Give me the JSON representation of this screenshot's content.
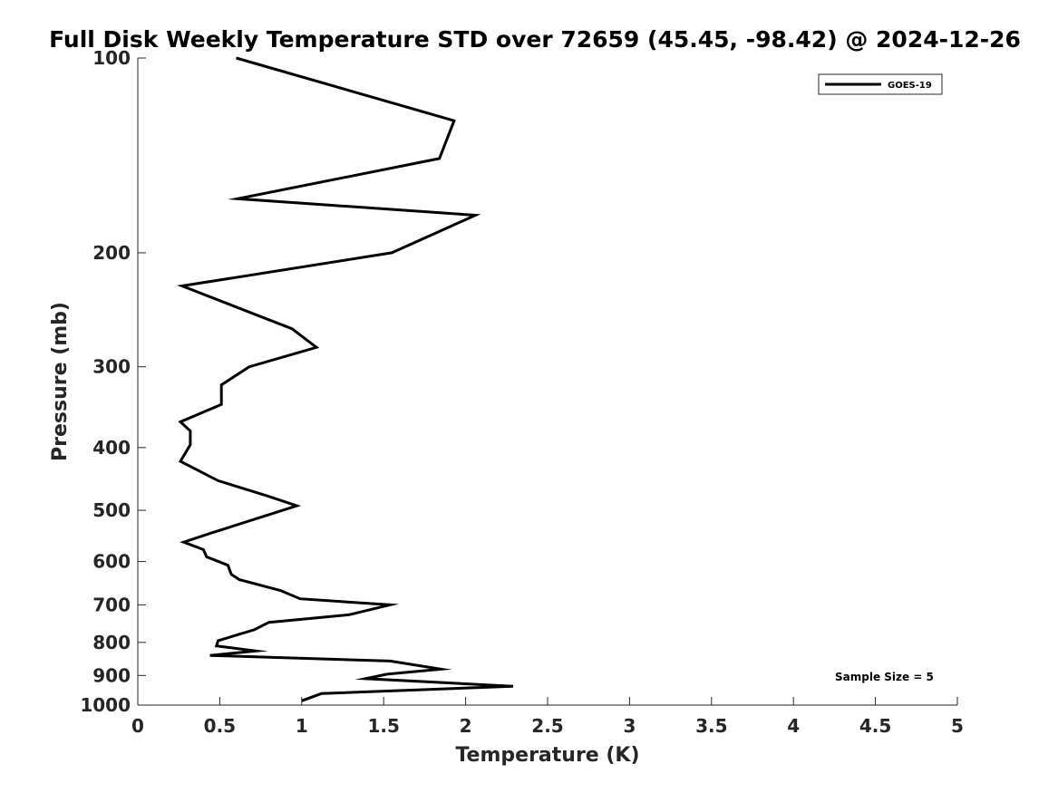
{
  "chart_data": {
    "type": "line",
    "title": "Full Disk Weekly Temperature STD over 72659 (45.45, -98.42) @ 2024-12-26",
    "xlabel": "Temperature (K)",
    "ylabel": "Pressure (mb)",
    "xlim": [
      0,
      5
    ],
    "ylim": [
      1000,
      100
    ],
    "yscale": "log",
    "xticks": [
      0,
      0.5,
      1,
      1.5,
      2,
      2.5,
      3,
      3.5,
      4,
      4.5,
      5
    ],
    "xtick_labels": [
      "0",
      "0.5",
      "1",
      "1.5",
      "2",
      "2.5",
      "3",
      "3.5",
      "4",
      "4.5",
      "5"
    ],
    "yticks": [
      100,
      200,
      300,
      400,
      500,
      600,
      700,
      800,
      900,
      1000
    ],
    "ytick_labels": [
      "100",
      "200",
      "300",
      "400",
      "500",
      "600",
      "700",
      "800",
      "900",
      "1000"
    ],
    "grid": false,
    "legend_position": "top-right",
    "series": [
      {
        "name": "GOES-19",
        "color": "#000000",
        "points": [
          [
            0.6,
            100
          ],
          [
            1.93,
            125
          ],
          [
            1.84,
            143
          ],
          [
            0.61,
            165
          ],
          [
            2.06,
            175
          ],
          [
            1.55,
            200
          ],
          [
            0.27,
            225
          ],
          [
            0.94,
            262
          ],
          [
            1.09,
            280
          ],
          [
            0.68,
            300
          ],
          [
            0.51,
            320
          ],
          [
            0.51,
            343
          ],
          [
            0.26,
            365
          ],
          [
            0.32,
            377
          ],
          [
            0.32,
            396
          ],
          [
            0.26,
            420
          ],
          [
            0.49,
            450
          ],
          [
            0.79,
            475
          ],
          [
            0.97,
            492
          ],
          [
            0.44,
            543
          ],
          [
            0.28,
            560
          ],
          [
            0.4,
            575
          ],
          [
            0.42,
            590
          ],
          [
            0.55,
            608
          ],
          [
            0.57,
            628
          ],
          [
            0.62,
            640
          ],
          [
            0.87,
            665
          ],
          [
            0.99,
            685
          ],
          [
            1.54,
            700
          ],
          [
            1.29,
            725
          ],
          [
            0.8,
            745
          ],
          [
            0.71,
            765
          ],
          [
            0.49,
            795
          ],
          [
            0.48,
            810
          ],
          [
            0.72,
            825
          ],
          [
            0.44,
            838
          ],
          [
            1.54,
            855
          ],
          [
            1.85,
            880
          ],
          [
            1.52,
            896
          ],
          [
            1.39,
            910
          ],
          [
            2.29,
            935
          ],
          [
            1.12,
            960
          ],
          [
            1.0,
            985
          ]
        ]
      }
    ],
    "annotations": [
      "Sample Size = 5"
    ]
  }
}
